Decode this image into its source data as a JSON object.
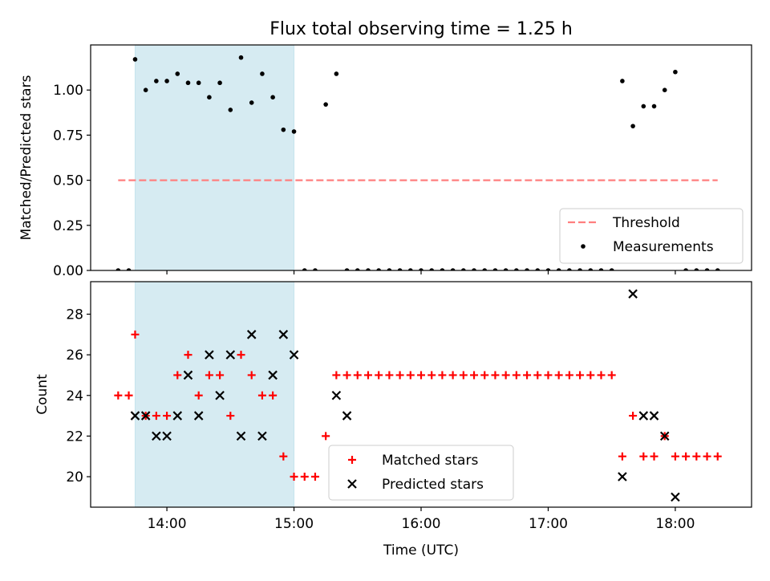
{
  "chart_data": [
    {
      "type": "scatter",
      "title": "Flux total observing time = 1.25 h",
      "xlabel": "",
      "ylabel": "Matched/Predicted stars",
      "xlim": [
        "13:24",
        "18:36"
      ],
      "ylim": [
        0,
        1.25
      ],
      "x_tick_labels": [
        "14:00",
        "15:00",
        "16:00",
        "17:00",
        "18:00"
      ],
      "y_tick_labels": [
        "0.00",
        "0.25",
        "0.50",
        "0.75",
        "1.00"
      ],
      "y_ticks": [
        0,
        0.25,
        0.5,
        0.75,
        1.0
      ],
      "shaded_span": {
        "x": [
          "13:45",
          "15:00"
        ],
        "color": "#add8e6"
      },
      "threshold": {
        "name": "Threshold",
        "value": 0.5,
        "x": [
          "13:37",
          "18:20"
        ],
        "color": "#ff7f7f"
      },
      "series": [
        {
          "name": "Measurements",
          "color": "#000000",
          "x": [
            "13:37",
            "13:42",
            "13:45",
            "13:50",
            "13:55",
            "14:00",
            "14:05",
            "14:10",
            "14:15",
            "14:20",
            "14:25",
            "14:30",
            "14:35",
            "14:40",
            "14:45",
            "14:50",
            "14:55",
            "15:00",
            "15:05",
            "15:10",
            "15:15",
            "15:20",
            "15:25",
            "15:30",
            "15:35",
            "15:40",
            "15:45",
            "15:50",
            "15:55",
            "16:00",
            "16:05",
            "16:10",
            "16:15",
            "16:20",
            "16:25",
            "16:30",
            "16:35",
            "16:40",
            "16:45",
            "16:50",
            "16:55",
            "17:00",
            "17:05",
            "17:10",
            "17:15",
            "17:20",
            "17:25",
            "17:30",
            "17:35",
            "17:40",
            "17:45",
            "17:50",
            "17:55",
            "18:00",
            "18:05",
            "18:10",
            "18:15",
            "18:20"
          ],
          "values": [
            0,
            0,
            1.17,
            1.0,
            1.05,
            1.05,
            1.09,
            1.04,
            1.04,
            0.96,
            1.04,
            0.89,
            1.18,
            0.93,
            1.09,
            0.96,
            0.78,
            0.77,
            0,
            0,
            0.92,
            1.09,
            0,
            0,
            0,
            0,
            0,
            0,
            0,
            0,
            0,
            0,
            0,
            0,
            0,
            0,
            0,
            0,
            0,
            0,
            0,
            0,
            0,
            0,
            0,
            0,
            0,
            0,
            1.05,
            0.8,
            0.91,
            0.91,
            1.0,
            1.1,
            0,
            0,
            0,
            0
          ]
        }
      ],
      "legend": {
        "position": "lower-right",
        "entries": [
          "Threshold",
          "Measurements"
        ]
      }
    },
    {
      "type": "scatter",
      "title": "",
      "xlabel": "Time (UTC)",
      "ylabel": "Count",
      "xlim": [
        "13:24",
        "18:36"
      ],
      "ylim": [
        18.5,
        29.6
      ],
      "x_tick_labels": [
        "14:00",
        "15:00",
        "16:00",
        "17:00",
        "18:00"
      ],
      "y_tick_labels": [
        "20",
        "22",
        "24",
        "26",
        "28"
      ],
      "y_ticks": [
        20,
        22,
        24,
        26,
        28
      ],
      "shaded_span": {
        "x": [
          "13:45",
          "15:00"
        ],
        "color": "#add8e6"
      },
      "series": [
        {
          "name": "Matched stars",
          "marker": "+",
          "color": "#ff0000",
          "x": [
            "13:37",
            "13:42",
            "13:45",
            "13:50",
            "13:55",
            "14:00",
            "14:05",
            "14:10",
            "14:15",
            "14:20",
            "14:25",
            "14:30",
            "14:35",
            "14:40",
            "14:45",
            "14:50",
            "14:55",
            "15:00",
            "15:05",
            "15:10",
            "15:15",
            "15:20",
            "15:25",
            "15:30",
            "15:35",
            "15:40",
            "15:45",
            "15:50",
            "15:55",
            "16:00",
            "16:05",
            "16:10",
            "16:15",
            "16:20",
            "16:25",
            "16:30",
            "16:35",
            "16:40",
            "16:45",
            "16:50",
            "16:55",
            "17:00",
            "17:05",
            "17:10",
            "17:15",
            "17:20",
            "17:25",
            "17:30",
            "17:35",
            "17:40",
            "17:45",
            "17:50",
            "17:55",
            "18:00",
            "18:05",
            "18:10",
            "18:15",
            "18:20"
          ],
          "values": [
            24,
            24,
            27,
            23,
            23,
            23,
            25,
            26,
            24,
            25,
            25,
            23,
            26,
            25,
            24,
            24,
            21,
            20,
            20,
            20,
            22,
            25,
            25,
            25,
            25,
            25,
            25,
            25,
            25,
            25,
            25,
            25,
            25,
            25,
            25,
            25,
            25,
            25,
            25,
            25,
            25,
            25,
            25,
            25,
            25,
            25,
            25,
            25,
            21,
            23,
            21,
            21,
            22,
            21,
            21,
            21,
            21,
            21
          ]
        },
        {
          "name": "Predicted stars",
          "marker": "x",
          "color": "#000000",
          "x": [
            "13:45",
            "13:50",
            "13:55",
            "14:00",
            "14:05",
            "14:10",
            "14:15",
            "14:20",
            "14:25",
            "14:30",
            "14:35",
            "14:40",
            "14:45",
            "14:50",
            "14:55",
            "15:00",
            "15:20",
            "15:25",
            "17:35",
            "17:40",
            "17:45",
            "17:50",
            "17:55",
            "18:00"
          ],
          "values": [
            23,
            23,
            22,
            22,
            23,
            25,
            23,
            26,
            24,
            26,
            22,
            27,
            22,
            25,
            27,
            26,
            24,
            23,
            20,
            29,
            23,
            23,
            22,
            19
          ]
        }
      ],
      "legend": {
        "position": "lower-center",
        "entries": [
          "Matched stars",
          "Predicted stars"
        ]
      }
    }
  ]
}
